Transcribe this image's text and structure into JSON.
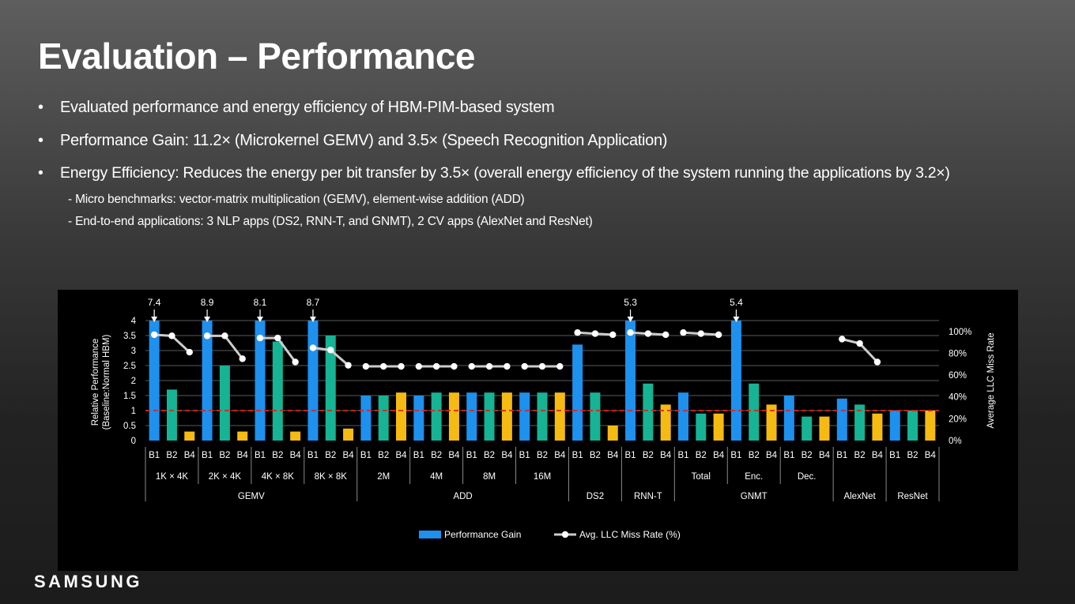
{
  "title": "Evaluation – Performance",
  "bullets": [
    "Evaluated performance and energy efficiency of HBM-PIM-based system",
    "Performance Gain: 11.2× (Microkernel GEMV) and 3.5× (Speech Recognition Application)",
    "Energy Efficiency: Reduces the energy per bit transfer by 3.5× (overall energy efficiency of the system running the applications by 3.2×)"
  ],
  "sub_bullets": [
    "- Micro benchmarks: vector-matrix multiplication (GEMV), element-wise addition (ADD)",
    "- End-to-end applications: 3 NLP apps (DS2, RNN-T, and GNMT), 2 CV apps (AlexNet and ResNet)"
  ],
  "logo": "SAMSUNG",
  "chart_data": {
    "type": "bar",
    "ylabel": "Relative Performance\n(Baseline:Normal HBM)",
    "y2label": "Average LLC Miss Rate",
    "ylim": [
      0,
      4
    ],
    "yticks": [
      "0",
      "0.5",
      "1",
      "1.5",
      "2",
      "2.5",
      "3",
      "3.5",
      "4"
    ],
    "y2lim": [
      0,
      110
    ],
    "y2ticks": [
      "0%",
      "20%",
      "40%",
      "60%",
      "80%",
      "100%"
    ],
    "baseline": 1,
    "categories": [
      "B1",
      "B2",
      "B4",
      "B1",
      "B2",
      "B4",
      "B1",
      "B2",
      "B4",
      "B1",
      "B2",
      "B4",
      "B1",
      "B2",
      "B4",
      "B1",
      "B2",
      "B4",
      "B1",
      "B2",
      "B4",
      "B1",
      "B2",
      "B4",
      "B1",
      "B2",
      "B4",
      "B1",
      "B2",
      "B4",
      "B1",
      "B2",
      "B4",
      "B1",
      "B2",
      "B4",
      "B1",
      "B2",
      "B4",
      "B1",
      "B2",
      "B4",
      "B1",
      "B2",
      "B4"
    ],
    "groups_level1": [
      {
        "label": "1K × 4K",
        "count": 3
      },
      {
        "label": "2K × 4K",
        "count": 3
      },
      {
        "label": "4K × 8K",
        "count": 3
      },
      {
        "label": "8K × 8K",
        "count": 3
      },
      {
        "label": "2M",
        "count": 3
      },
      {
        "label": "4M",
        "count": 3
      },
      {
        "label": "8M",
        "count": 3
      },
      {
        "label": "16M",
        "count": 3
      },
      {
        "label": "",
        "count": 3
      },
      {
        "label": "",
        "count": 3
      },
      {
        "label": "Total",
        "count": 3
      },
      {
        "label": "Enc.",
        "count": 3
      },
      {
        "label": "Dec.",
        "count": 3
      },
      {
        "label": "",
        "count": 3
      },
      {
        "label": "",
        "count": 3
      }
    ],
    "groups_level2": [
      {
        "label": "GEMV",
        "count": 12
      },
      {
        "label": "ADD",
        "count": 12
      },
      {
        "label": "DS2",
        "count": 3
      },
      {
        "label": "RNN-T",
        "count": 3
      },
      {
        "label": "GNMT",
        "count": 9
      },
      {
        "label": "AlexNet",
        "count": 3
      },
      {
        "label": "ResNet",
        "count": 3
      }
    ],
    "series": [
      {
        "name": "Performance Gain",
        "values": [
          7.4,
          1.7,
          0.3,
          8.9,
          2.5,
          0.3,
          8.1,
          3.3,
          0.3,
          8.7,
          3.5,
          0.4,
          1.5,
          1.5,
          1.6,
          1.5,
          1.6,
          1.6,
          1.6,
          1.6,
          1.6,
          1.6,
          1.6,
          1.6,
          3.2,
          1.6,
          0.5,
          5.3,
          1.9,
          1.2,
          1.6,
          0.9,
          0.9,
          5.4,
          1.9,
          1.2,
          1.5,
          0.8,
          0.8,
          1.4,
          1.2,
          0.9,
          1.0,
          1.0,
          1.0
        ]
      },
      {
        "name": "Avg. LLC Miss Rate (%)",
        "values": [
          97,
          96,
          81,
          96,
          96,
          75,
          94,
          94,
          72,
          85,
          83,
          69,
          68,
          68,
          68,
          68,
          68,
          68,
          68,
          68,
          68,
          68,
          68,
          68,
          99,
          98,
          97,
          99,
          98,
          97,
          99,
          98,
          97,
          null,
          null,
          null,
          null,
          null,
          null,
          93,
          89,
          72,
          null,
          null,
          null
        ]
      }
    ],
    "overflow_labels": [
      {
        "index": 0,
        "label": "7.4"
      },
      {
        "index": 3,
        "label": "8.9"
      },
      {
        "index": 6,
        "label": "8.1"
      },
      {
        "index": 9,
        "label": "8.7"
      },
      {
        "index": 27,
        "label": "5.3"
      },
      {
        "index": 33,
        "label": "5.4"
      }
    ],
    "colors": {
      "B1": "#1e90ee",
      "B2": "#16b394",
      "B4": "#f5bb12",
      "line": "#cccccc",
      "marker": "#ffffff",
      "baseline": "#e2231a",
      "grid": "#5a5a5a"
    },
    "legend_position": "bottom-center"
  }
}
